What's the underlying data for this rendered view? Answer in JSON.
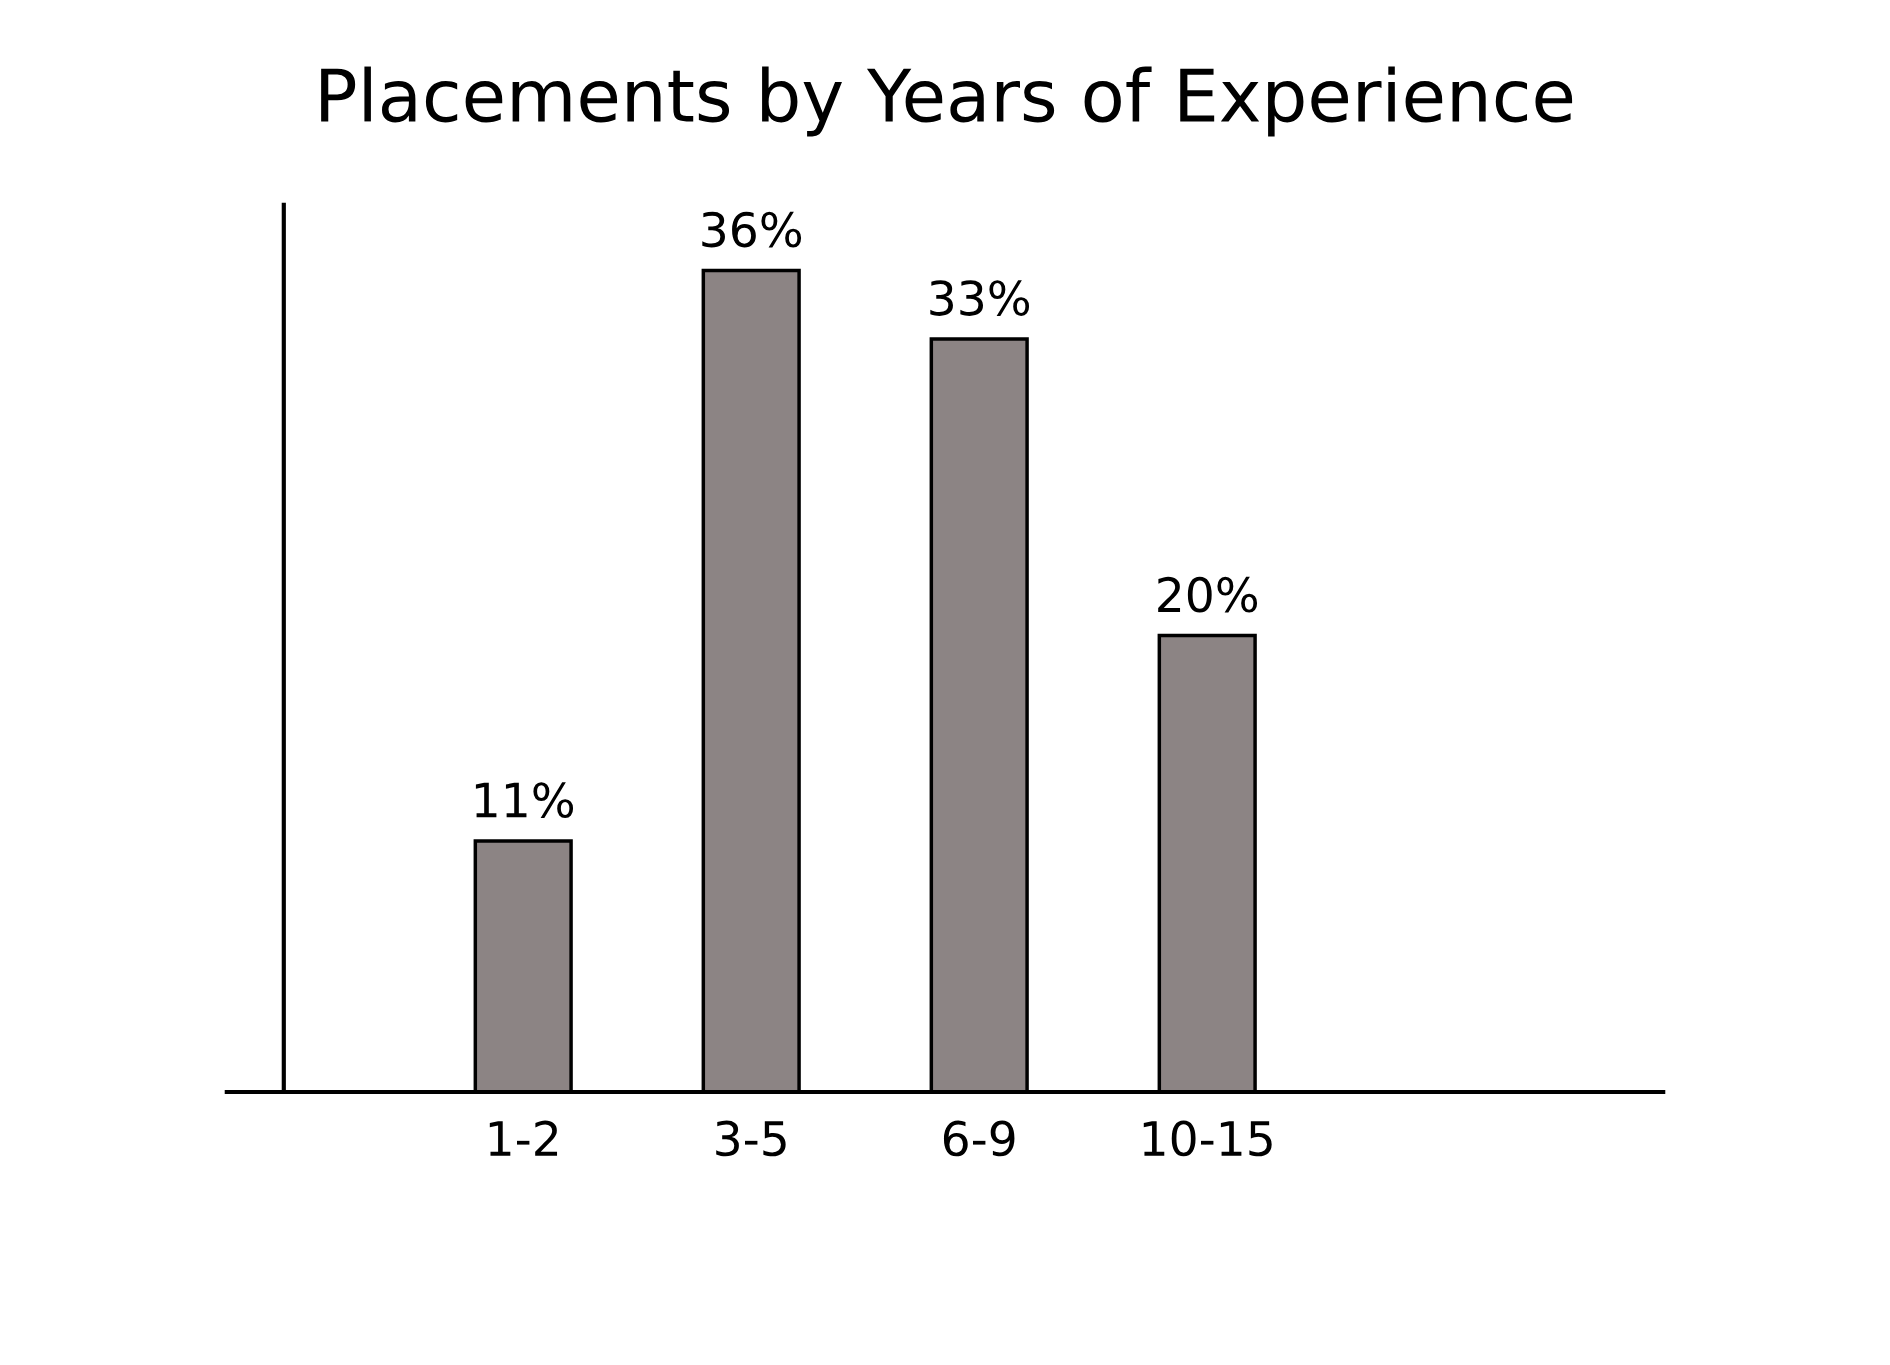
{
  "chart_data": {
    "type": "bar",
    "title": "Placements by Years of Experience",
    "categories": [
      "1-2",
      "3-5",
      "6-9",
      "10-15"
    ],
    "values": [
      11,
      36,
      33,
      20
    ],
    "value_labels": [
      "11%",
      "36%",
      "33%",
      "20%"
    ],
    "color": "#8c8484",
    "grid": false,
    "legend": false
  }
}
